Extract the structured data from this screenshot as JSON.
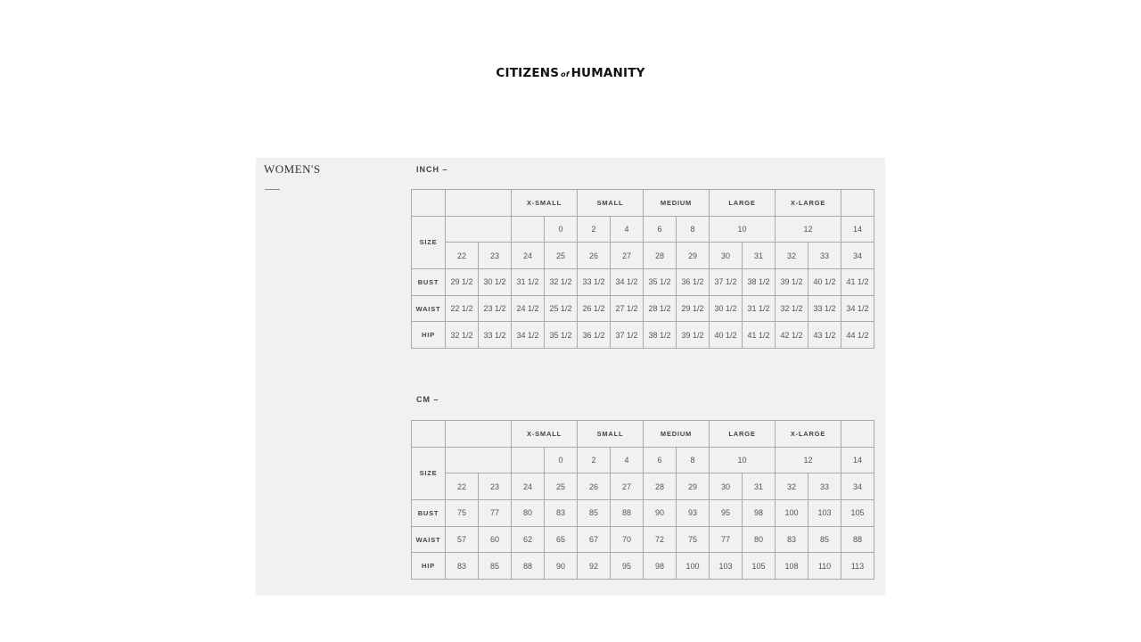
{
  "brand": {
    "left": "CITIZENS",
    "of": "of",
    "right": "HUMANITY"
  },
  "section_title": "WOMEN'S",
  "size_label": "SIZE",
  "tables": [
    {
      "unit_label": "INCH –",
      "groups": [
        "",
        "X-SMALL",
        "SMALL",
        "MEDIUM",
        "LARGE",
        "X-LARGE",
        ""
      ],
      "numeric_sizes": [
        "",
        "",
        "0",
        "2",
        "4",
        "6",
        "8",
        "10",
        "12",
        "14"
      ],
      "waist_sizes": [
        "22",
        "23",
        "24",
        "25",
        "26",
        "27",
        "28",
        "29",
        "30",
        "31",
        "32",
        "33",
        "34"
      ],
      "rows": [
        {
          "label": "BUST",
          "values": [
            "29 1/2",
            "30 1/2",
            "31 1/2",
            "32 1/2",
            "33 1/2",
            "34 1/2",
            "35 1/2",
            "36 1/2",
            "37 1/2",
            "38 1/2",
            "39 1/2",
            "40 1/2",
            "41 1/2"
          ]
        },
        {
          "label": "WAIST",
          "values": [
            "22 1/2",
            "23 1/2",
            "24 1/2",
            "25 1/2",
            "26 1/2",
            "27 1/2",
            "28 1/2",
            "29 1/2",
            "30 1/2",
            "31 1/2",
            "32 1/2",
            "33 1/2",
            "34 1/2"
          ]
        },
        {
          "label": "HIP",
          "values": [
            "32 1/2",
            "33 1/2",
            "34 1/2",
            "35 1/2",
            "36 1/2",
            "37 1/2",
            "38 1/2",
            "39 1/2",
            "40 1/2",
            "41 1/2",
            "42 1/2",
            "43 1/2",
            "44 1/2"
          ]
        }
      ]
    },
    {
      "unit_label": "CM –",
      "groups": [
        "",
        "X-SMALL",
        "SMALL",
        "MEDIUM",
        "LARGE",
        "X-LARGE",
        ""
      ],
      "numeric_sizes": [
        "",
        "",
        "0",
        "2",
        "4",
        "6",
        "8",
        "10",
        "12",
        "14"
      ],
      "waist_sizes": [
        "22",
        "23",
        "24",
        "25",
        "26",
        "27",
        "28",
        "29",
        "30",
        "31",
        "32",
        "33",
        "34"
      ],
      "rows": [
        {
          "label": "BUST",
          "values": [
            "75",
            "77",
            "80",
            "83",
            "85",
            "88",
            "90",
            "93",
            "95",
            "98",
            "100",
            "103",
            "105"
          ]
        },
        {
          "label": "WAIST",
          "values": [
            "57",
            "60",
            "62",
            "65",
            "67",
            "70",
            "72",
            "75",
            "77",
            "80",
            "83",
            "85",
            "88"
          ]
        },
        {
          "label": "HIP",
          "values": [
            "83",
            "85",
            "88",
            "90",
            "92",
            "95",
            "98",
            "100",
            "103",
            "105",
            "108",
            "110",
            "113"
          ]
        }
      ]
    }
  ]
}
